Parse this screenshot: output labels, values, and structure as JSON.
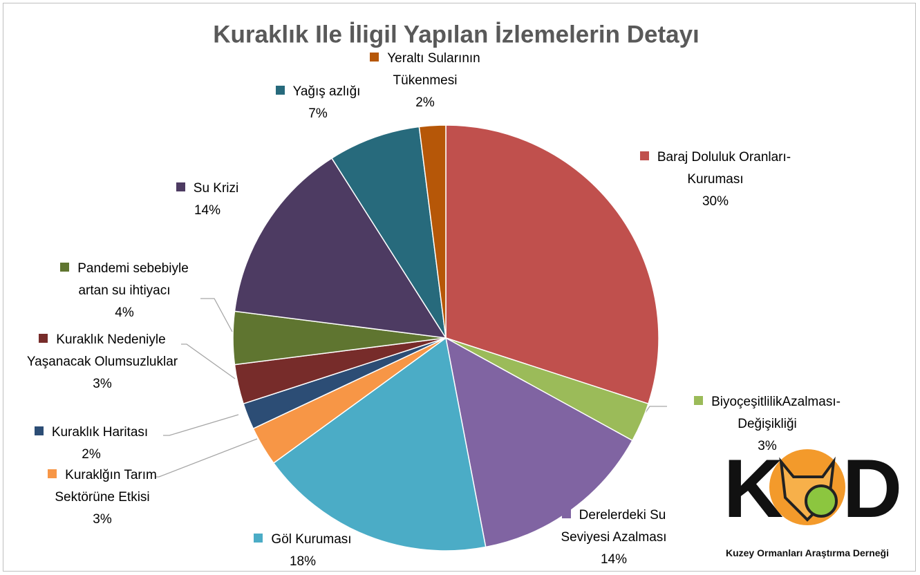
{
  "chart_data": {
    "type": "pie",
    "title": "Kuraklık Ile İligil Yapılan İzlemelerin Detayı",
    "categories": [
      "Baraj Doluluk Oranları-Kuruması",
      "BiyoçeşitlilikAzalması-Değişikliği",
      "Derelerdeki Su Seviyesi Azalması",
      "Göl Kuruması",
      "Kuraklğın Tarım Sektörüne Etkisi",
      "Kuraklık Haritası",
      "Kuraklık Nedeniyle Yaşanacak Olumsuzluklar",
      "Pandemi sebebiyle artan su ihtiyacı",
      "Su Krizi",
      "Yağış azlığı",
      "Yeraltı Sularının Tükenmesi"
    ],
    "values": [
      30,
      3,
      14,
      18,
      3,
      2,
      3,
      4,
      14,
      7,
      2
    ],
    "value_labels": [
      "30%",
      "3%",
      "14%",
      "18%",
      "3%",
      "2%",
      "3%",
      "4%",
      "14%",
      "7%",
      "2%"
    ],
    "colors": [
      "#c0504d",
      "#9bbb59",
      "#8064a2",
      "#4bacc6",
      "#f79646",
      "#2c4d75",
      "#772c2a",
      "#5f7530",
      "#4d3b62",
      "#276a7c",
      "#b65708"
    ]
  },
  "logo": {
    "left": "K",
    "right": "D",
    "subtitle": "Kuzey Ormanları Araştırma Derneği"
  }
}
